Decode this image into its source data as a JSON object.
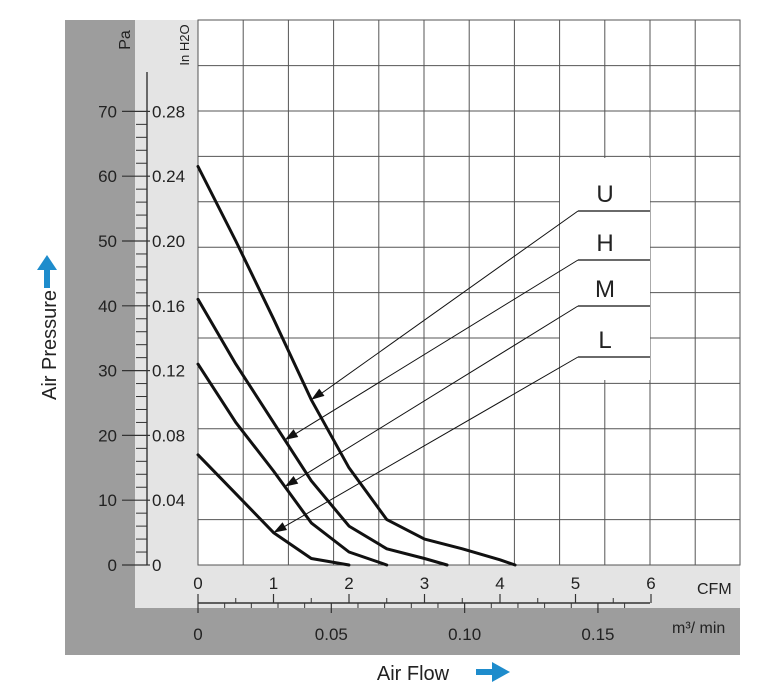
{
  "chart_data": {
    "type": "line",
    "xlabel": "Air Flow",
    "ylabel": "Air Pressure",
    "x_unit_primary": "CFM",
    "x_unit_secondary": "m³/ min",
    "y_unit_primary": "Pa",
    "y_unit_secondary": "In H2O",
    "xlim_cfm": [
      0,
      7
    ],
    "ylim_pa": [
      0,
      80
    ],
    "grid": true,
    "x_ticks_cfm": [
      "0",
      "1",
      "2",
      "3",
      "4",
      "5",
      "6"
    ],
    "x_ticks_m3min": [
      "0",
      "0.05",
      "0.10",
      "0.15"
    ],
    "y_ticks_pa": [
      "0",
      "10",
      "20",
      "30",
      "40",
      "50",
      "60",
      "70"
    ],
    "y_ticks_inh2o": [
      "0",
      "0.04",
      "0.08",
      "0.12",
      "0.16",
      "0.20",
      "0.24",
      "0.28"
    ],
    "series": [
      {
        "name": "U",
        "x": [
          0,
          0.5,
          1.0,
          1.5,
          2.0,
          2.5,
          3.0,
          3.5,
          4.0,
          4.2
        ],
        "y": [
          61.5,
          50,
          38,
          25.5,
          15,
          7,
          4,
          2.5,
          0.8,
          0
        ]
      },
      {
        "name": "H",
        "x": [
          0,
          0.5,
          1.0,
          1.5,
          2.0,
          2.5,
          3.0,
          3.3
        ],
        "y": [
          41,
          31,
          22,
          13,
          6,
          2.5,
          1,
          0
        ]
      },
      {
        "name": "M",
        "x": [
          0,
          0.5,
          1.0,
          1.5,
          2.0,
          2.5
        ],
        "y": [
          31,
          22,
          14.5,
          6.5,
          2,
          0
        ]
      },
      {
        "name": "L",
        "x": [
          0,
          0.5,
          1.0,
          1.5,
          2.0
        ],
        "y": [
          17,
          11,
          5,
          1,
          0
        ]
      }
    ]
  }
}
